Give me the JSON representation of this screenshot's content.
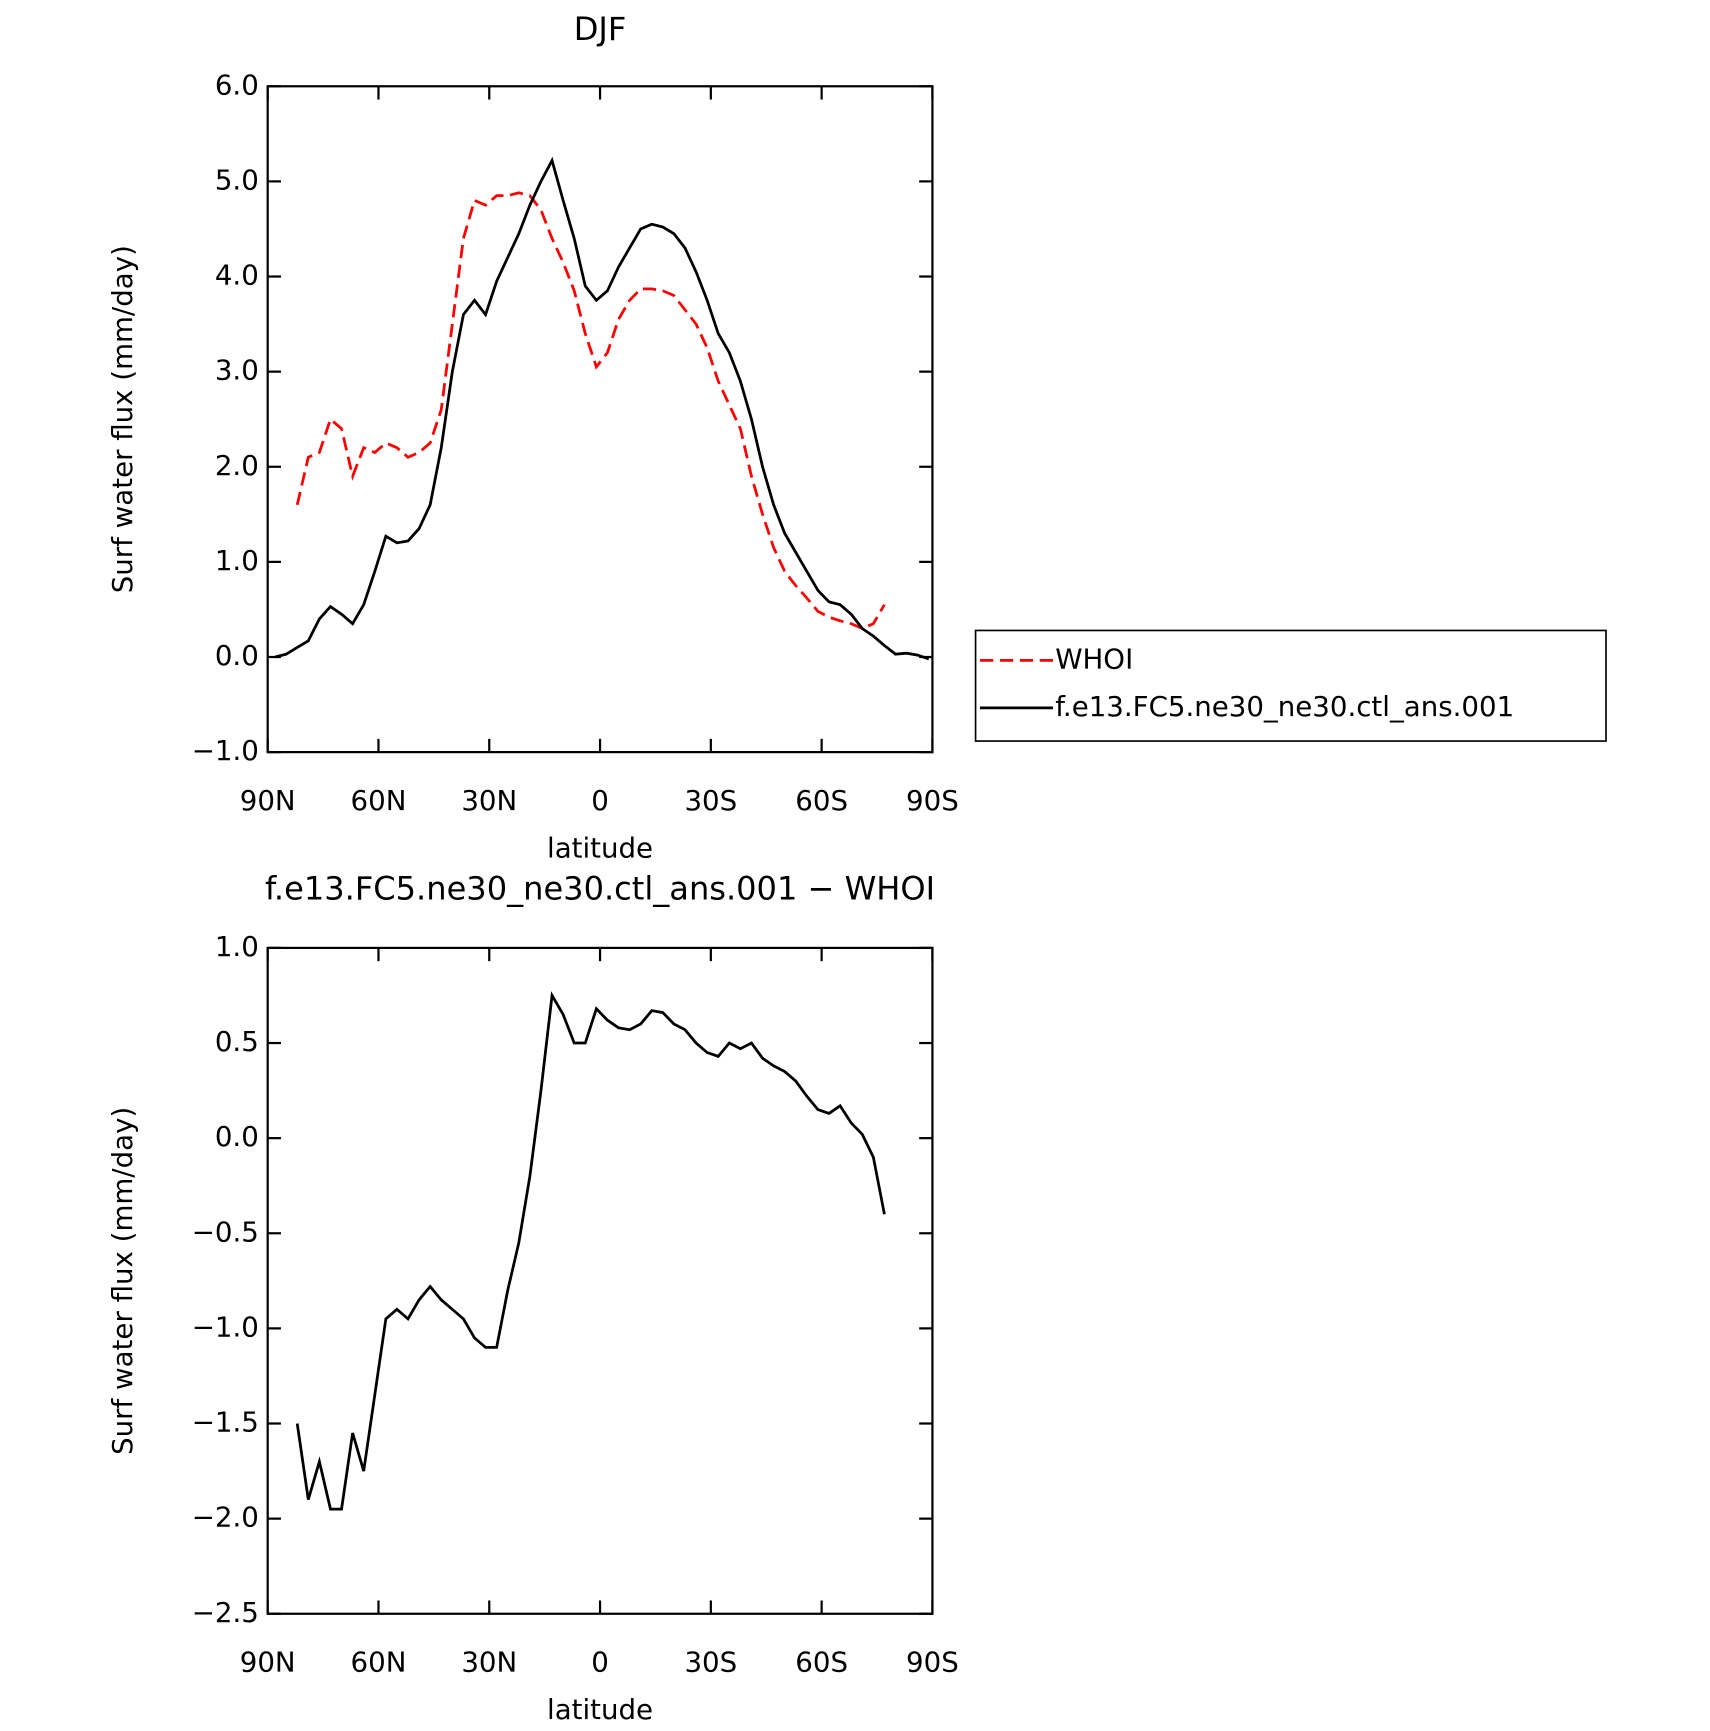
{
  "chart_data": [
    {
      "type": "line",
      "title": "DJF",
      "xlabel": "latitude",
      "ylabel": "Surf water flux (mm/day)",
      "x": [
        88,
        85,
        82,
        79,
        76,
        73,
        70,
        67,
        64,
        61,
        58,
        55,
        52,
        49,
        46,
        43,
        40,
        37,
        34,
        31,
        28,
        25,
        22,
        19,
        16,
        13,
        10,
        7,
        4,
        1,
        -2,
        -5,
        -8,
        -11,
        -14,
        -17,
        -20,
        -23,
        -26,
        -29,
        -32,
        -35,
        -38,
        -41,
        -44,
        -47,
        -50,
        -53,
        -56,
        -59,
        -62,
        -65,
        -68,
        -71,
        -74,
        -77,
        -80,
        -83,
        -86,
        -89
      ],
      "series": [
        {
          "name": "WHOI",
          "color": "#ff0000",
          "line_style": "dashed",
          "values": [
            null,
            null,
            1.6,
            2.1,
            2.15,
            2.5,
            2.4,
            1.9,
            2.2,
            2.15,
            2.25,
            2.2,
            2.1,
            2.15,
            2.25,
            2.6,
            3.5,
            4.4,
            4.8,
            4.75,
            4.85,
            4.85,
            4.88,
            4.85,
            4.7,
            4.4,
            4.15,
            3.85,
            3.4,
            3.05,
            3.2,
            3.55,
            3.75,
            3.87,
            3.87,
            3.85,
            3.8,
            3.65,
            3.5,
            3.25,
            2.9,
            2.65,
            2.4,
            1.9,
            1.5,
            1.15,
            0.9,
            0.75,
            0.62,
            0.48,
            0.42,
            0.38,
            0.35,
            0.3,
            0.35,
            0.55,
            null,
            null,
            null,
            null
          ]
        },
        {
          "name": "f.e13.FC5.ne30_ne30.ctl_ans.001",
          "color": "#000000",
          "line_style": "solid",
          "values": [
            0.0,
            0.03,
            0.1,
            0.17,
            0.4,
            0.53,
            0.45,
            0.35,
            0.55,
            0.9,
            1.27,
            1.2,
            1.22,
            1.35,
            1.6,
            2.2,
            3.0,
            3.6,
            3.75,
            3.6,
            3.95,
            4.2,
            4.45,
            4.75,
            5.0,
            5.22,
            4.8,
            4.4,
            3.9,
            3.75,
            3.85,
            4.1,
            4.3,
            4.5,
            4.55,
            4.52,
            4.45,
            4.3,
            4.05,
            3.75,
            3.4,
            3.2,
            2.9,
            2.5,
            2.0,
            1.6,
            1.3,
            1.1,
            0.9,
            0.7,
            0.58,
            0.55,
            0.45,
            0.3,
            0.22,
            0.12,
            0.03,
            0.04,
            0.02,
            -0.02
          ]
        }
      ],
      "xlim": [
        90,
        -90
      ],
      "xticks": [
        {
          "value": 90,
          "label": "90N"
        },
        {
          "value": 60,
          "label": "60N"
        },
        {
          "value": 30,
          "label": "30N"
        },
        0,
        {
          "value": -30,
          "label": "30S"
        },
        {
          "value": -60,
          "label": "60S"
        },
        {
          "value": -90,
          "label": "90S"
        }
      ],
      "ylim": [
        -1,
        6
      ],
      "yticks": [
        {
          "value": -1,
          "label": "−1.0"
        },
        {
          "value": 0,
          "label": "0.0"
        },
        {
          "value": 1,
          "label": "1.0"
        },
        {
          "value": 2,
          "label": "2.0"
        },
        {
          "value": 3,
          "label": "3.0"
        },
        {
          "value": 4,
          "label": "4.0"
        },
        {
          "value": 5,
          "label": "5.0"
        },
        {
          "value": 6,
          "label": "6.0"
        }
      ],
      "legend": "right"
    },
    {
      "type": "line",
      "title": "f.e13.FC5.ne30_ne30.ctl_ans.001 − WHOI",
      "xlabel": "latitude",
      "ylabel": "Surf water flux (mm/day)",
      "x": [
        88,
        85,
        82,
        79,
        76,
        73,
        70,
        67,
        64,
        61,
        58,
        55,
        52,
        49,
        46,
        43,
        40,
        37,
        34,
        31,
        28,
        25,
        22,
        19,
        16,
        13,
        10,
        7,
        4,
        1,
        -2,
        -5,
        -8,
        -11,
        -14,
        -17,
        -20,
        -23,
        -26,
        -29,
        -32,
        -35,
        -38,
        -41,
        -44,
        -47,
        -50,
        -53,
        -56,
        -59,
        -62,
        -65,
        -68,
        -71,
        -74,
        -77,
        -80,
        -83,
        -86,
        -89
      ],
      "values": [
        null,
        null,
        -1.5,
        -1.9,
        -1.7,
        -1.95,
        -1.95,
        -1.55,
        -1.75,
        -1.35,
        -0.95,
        -0.9,
        -0.95,
        -0.85,
        -0.78,
        -0.85,
        -0.9,
        -0.95,
        -1.05,
        -1.1,
        -1.1,
        -0.8,
        -0.55,
        -0.2,
        0.25,
        0.75,
        0.65,
        0.5,
        0.5,
        0.68,
        0.62,
        0.58,
        0.57,
        0.6,
        0.67,
        0.66,
        0.6,
        0.57,
        0.5,
        0.45,
        0.43,
        0.5,
        0.47,
        0.5,
        0.42,
        0.38,
        0.35,
        0.3,
        0.22,
        0.15,
        0.13,
        0.17,
        0.08,
        0.02,
        -0.1,
        -0.4,
        null,
        null,
        null,
        null
      ],
      "color": "#000000",
      "xlim": [
        90,
        -90
      ],
      "xticks": [
        {
          "value": 90,
          "label": "90N"
        },
        {
          "value": 60,
          "label": "60N"
        },
        {
          "value": 30,
          "label": "30N"
        },
        0,
        {
          "value": -30,
          "label": "30S"
        },
        {
          "value": -60,
          "label": "60S"
        },
        {
          "value": -90,
          "label": "90S"
        }
      ],
      "ylim": [
        -2.5,
        1
      ],
      "yticks": [
        {
          "value": -2.5,
          "label": "−2.5"
        },
        {
          "value": -2,
          "label": "−2.0"
        },
        {
          "value": -1.5,
          "label": "−1.5"
        },
        {
          "value": -1,
          "label": "−1.0"
        },
        {
          "value": -0.5,
          "label": "−0.5"
        },
        {
          "value": 0,
          "label": "0.0"
        },
        {
          "value": 0.5,
          "label": "0.5"
        },
        {
          "value": 1,
          "label": "1.0"
        }
      ]
    }
  ]
}
